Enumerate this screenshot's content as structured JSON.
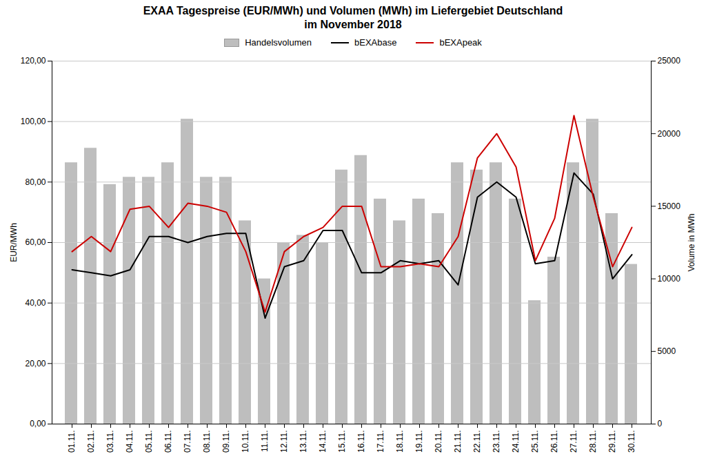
{
  "chart_data": {
    "type": "bar",
    "title": "EXAA Tagespreise (EUR/MWh) und Volumen (MWh) im Liefergebiet Deutschland\nim November 2018",
    "categories": [
      "01.11.",
      "02.11.",
      "03.11.",
      "04.11.",
      "05.11.",
      "06.11.",
      "07.11.",
      "08.11.",
      "09.11.",
      "10.11.",
      "11.11.",
      "12.11.",
      "13.11.",
      "14.11.",
      "15.11.",
      "16.11.",
      "17.11.",
      "18.11.",
      "19.11.",
      "20.11.",
      "21.11.",
      "22.11.",
      "23.11.",
      "24.11.",
      "25.11.",
      "26.11.",
      "27.11.",
      "28.11.",
      "29.11.",
      "30.11."
    ],
    "series": [
      {
        "name": "Handelsvolumen",
        "type": "bar",
        "axis": "y2",
        "color": "#bebebe",
        "values": [
          18000,
          19000,
          16500,
          17000,
          17000,
          18000,
          21000,
          17000,
          17000,
          14000,
          10000,
          12500,
          13000,
          12500,
          17500,
          18500,
          15500,
          14000,
          15500,
          14500,
          18000,
          17500,
          18000,
          15500,
          8500,
          11500,
          18000,
          21000,
          14500,
          11000
        ]
      },
      {
        "name": "bEXAbase",
        "type": "line",
        "color": "#000000",
        "values": [
          51,
          50,
          49,
          51,
          62,
          62,
          60,
          62,
          63,
          63,
          35,
          52,
          54,
          64,
          64,
          50,
          50,
          54,
          53,
          54,
          46,
          75,
          80,
          75,
          53,
          54,
          83,
          76,
          48,
          56
        ]
      },
      {
        "name": "bEXApeak",
        "type": "line",
        "color": "#cc0000",
        "values": [
          57,
          62,
          57,
          71,
          72,
          65,
          73,
          72,
          70,
          57,
          37,
          57,
          62,
          65,
          72,
          72,
          52,
          52,
          53,
          52,
          62,
          88,
          96,
          85,
          54,
          68,
          102,
          75,
          52,
          65
        ]
      }
    ],
    "ylabel": "EUR/MWh",
    "y2label": "Volume in MWh",
    "ylim": [
      0,
      120
    ],
    "yticks": [
      {
        "value": 0,
        "label": "0,00"
      },
      {
        "value": 20,
        "label": "20,00"
      },
      {
        "value": 40,
        "label": "40,00"
      },
      {
        "value": 60,
        "label": "60,00"
      },
      {
        "value": 80,
        "label": "80,00"
      },
      {
        "value": 100,
        "label": "100,00"
      },
      {
        "value": 120,
        "label": "120,00"
      }
    ],
    "y2lim": [
      0,
      25000
    ],
    "y2ticks": [
      0,
      5000,
      10000,
      15000,
      20000,
      25000
    ],
    "grid": true,
    "legend": "top"
  }
}
